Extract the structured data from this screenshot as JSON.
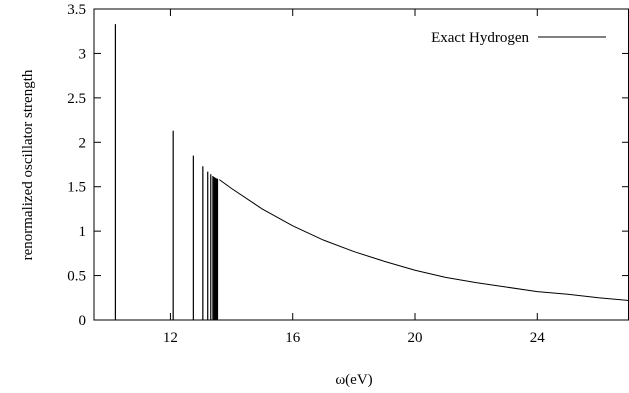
{
  "chart_data": {
    "type": "line",
    "title": "",
    "xlabel": "ω(eV)",
    "ylabel": "renormalized oscillator strength",
    "xlim": [
      9.5,
      27.0
    ],
    "ylim": [
      0,
      3.5
    ],
    "xticks": [
      12,
      16,
      20,
      24
    ],
    "xtick_labels": [
      "12",
      "16",
      "20",
      "24"
    ],
    "yticks": [
      0,
      0.5,
      1,
      1.5,
      2,
      2.5,
      3,
      3.5
    ],
    "ytick_labels": [
      "0",
      "0.5",
      "1",
      "1.5",
      "2",
      "2.5",
      "3",
      "3.5"
    ],
    "grid": false,
    "legend_position": "top-right",
    "series": [
      {
        "name": "Exact Hydrogen",
        "color": "#000000",
        "discrete_lines": [
          {
            "x": 10.2,
            "y": 3.33
          },
          {
            "x": 12.09,
            "y": 2.13
          },
          {
            "x": 12.75,
            "y": 1.85
          },
          {
            "x": 13.06,
            "y": 1.73
          },
          {
            "x": 13.22,
            "y": 1.67
          },
          {
            "x": 13.32,
            "y": 1.64
          },
          {
            "x": 13.39,
            "y": 1.62
          },
          {
            "x": 13.43,
            "y": 1.61
          },
          {
            "x": 13.46,
            "y": 1.6
          },
          {
            "x": 13.48,
            "y": 1.6
          },
          {
            "x": 13.5,
            "y": 1.59
          },
          {
            "x": 13.52,
            "y": 1.59
          },
          {
            "x": 13.53,
            "y": 1.59
          },
          {
            "x": 13.54,
            "y": 1.59
          }
        ],
        "continuum": [
          {
            "x": 13.6,
            "y": 1.58
          },
          {
            "x": 14.0,
            "y": 1.48
          },
          {
            "x": 15.0,
            "y": 1.25
          },
          {
            "x": 16.0,
            "y": 1.06
          },
          {
            "x": 17.0,
            "y": 0.9
          },
          {
            "x": 18.0,
            "y": 0.77
          },
          {
            "x": 19.0,
            "y": 0.66
          },
          {
            "x": 20.0,
            "y": 0.56
          },
          {
            "x": 21.0,
            "y": 0.48
          },
          {
            "x": 22.0,
            "y": 0.42
          },
          {
            "x": 23.0,
            "y": 0.37
          },
          {
            "x": 24.0,
            "y": 0.32
          },
          {
            "x": 25.0,
            "y": 0.29
          },
          {
            "x": 26.0,
            "y": 0.25
          },
          {
            "x": 27.0,
            "y": 0.22
          }
        ]
      }
    ]
  }
}
